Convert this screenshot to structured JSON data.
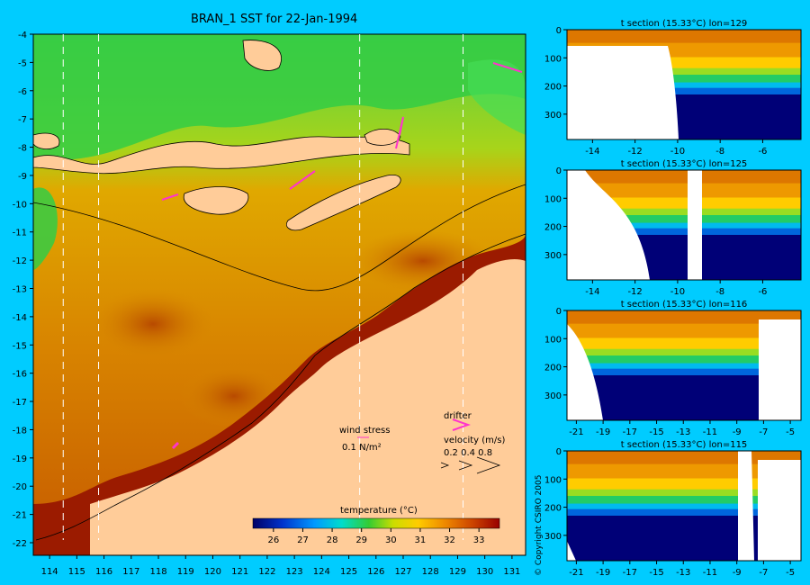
{
  "map": {
    "title": "BRAN_1 SST for 22-Jan-1994",
    "lon_ticks": [
      "114",
      "115",
      "116",
      "117",
      "118",
      "119",
      "120",
      "121",
      "122",
      "123",
      "124",
      "125",
      "126",
      "127",
      "128",
      "129",
      "130",
      "131"
    ],
    "lat_ticks": [
      "-4",
      "-5",
      "-6",
      "-7",
      "-8",
      "-9",
      "-10",
      "-11",
      "-12",
      "-13",
      "-14",
      "-15",
      "-16",
      "-17",
      "-18",
      "-19",
      "-20",
      "-21",
      "-22"
    ],
    "section_lines_lon": [
      114.5,
      115.8,
      125.4,
      129.2
    ],
    "colorbar": {
      "label": "temperature (°C)",
      "ticks": [
        "26",
        "27",
        "28",
        "29",
        "30",
        "31",
        "32",
        "33"
      ],
      "min": 25.3,
      "max": 33.7
    },
    "wind_legend": {
      "title": "wind stress",
      "value": "0.1 N/m²"
    },
    "drifter_label": "drifter",
    "velocity_legend": {
      "title": "velocity (m/s)",
      "values": "0.2 0.4 0.8"
    },
    "colors": {
      "land": "#ffcc99",
      "background": "#00ccff",
      "drifter": "#ff33cc",
      "warm": "#9b1b00",
      "cool": "#33cc44"
    }
  },
  "copyright": "© Copyright CSIRO 2005",
  "sections": [
    {
      "title": "t section (15.33°C) lon=129",
      "x_ticks": [
        "-14",
        "-12",
        "-10",
        "-8",
        "-6"
      ],
      "y_ticks": [
        "0",
        "100",
        "200",
        "300"
      ]
    },
    {
      "title": "t section (15.33°C) lon=125",
      "x_ticks": [
        "-14",
        "-12",
        "-10",
        "-8",
        "-6"
      ],
      "y_ticks": [
        "0",
        "100",
        "200",
        "300"
      ]
    },
    {
      "title": "t section (15.33°C) lon=116",
      "x_ticks": [
        "-21",
        "-19",
        "-17",
        "-15",
        "-13",
        "-11",
        "-9",
        "-7",
        "-5"
      ],
      "y_ticks": [
        "0",
        "100",
        "200",
        "300"
      ]
    },
    {
      "title": "t section (15.33°C) lon=115",
      "x_ticks": [
        "-21",
        "-19",
        "-17",
        "-15",
        "-13",
        "-11",
        "-9",
        "-7",
        "-5"
      ],
      "y_ticks": [
        "0",
        "100",
        "200",
        "300"
      ]
    }
  ]
}
